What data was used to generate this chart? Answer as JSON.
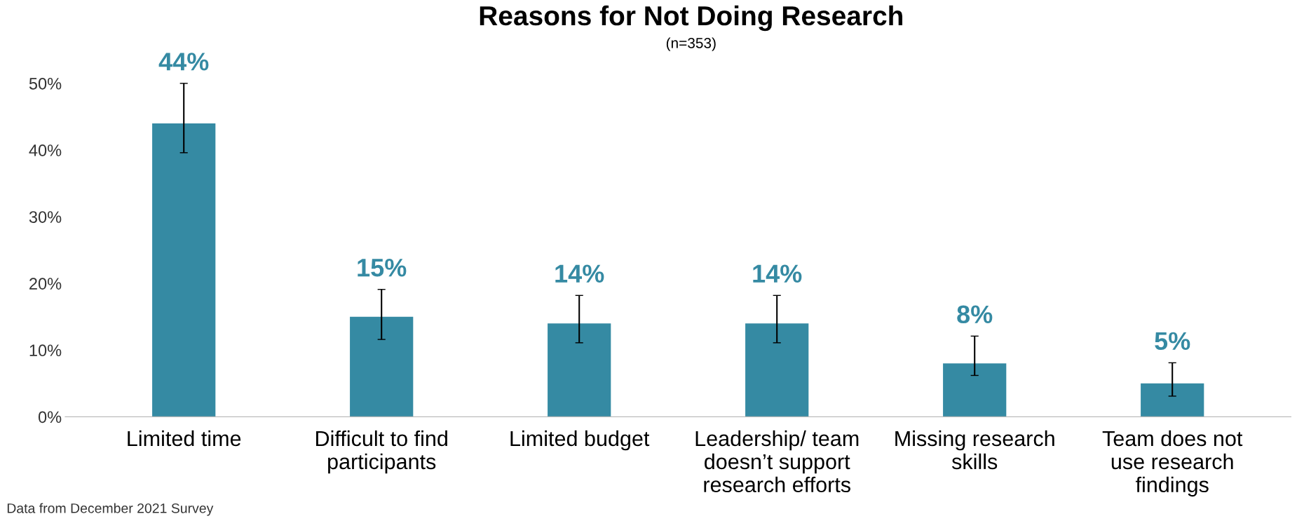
{
  "chart_data": {
    "type": "bar",
    "title": "Reasons for Not Doing Research",
    "subtitle": "(n=353)",
    "categories": [
      "Limited time",
      "Difficult to find\nparticipants",
      "Limited budget",
      "Leadership/ team\ndoesn’t support\nresearch efforts",
      "Missing research\nskills",
      "Team does not\nuse research\nfindings"
    ],
    "values": [
      44,
      15,
      14,
      14,
      8,
      5
    ],
    "value_labels": [
      "44%",
      "15%",
      "14%",
      "14%",
      "8%",
      "5%"
    ],
    "errors": [
      [
        39.6,
        50
      ],
      [
        11.6,
        19.1
      ],
      [
        11.1,
        18.2
      ],
      [
        11.1,
        18.2
      ],
      [
        6.2,
        12.1
      ],
      [
        3.1,
        8.1
      ]
    ],
    "color": "#358aa3",
    "ylim": [
      0,
      50
    ],
    "yticks": [
      {
        "value": 0,
        "label": "0%"
      },
      {
        "value": 10,
        "label": "10%"
      },
      {
        "value": 20,
        "label": "20%"
      },
      {
        "value": 30,
        "label": "30%"
      },
      {
        "value": 40,
        "label": "40%"
      },
      {
        "value": 50,
        "label": "50%"
      }
    ],
    "grid": false,
    "annotations": [
      "Data from December 2021 Survey"
    ]
  }
}
